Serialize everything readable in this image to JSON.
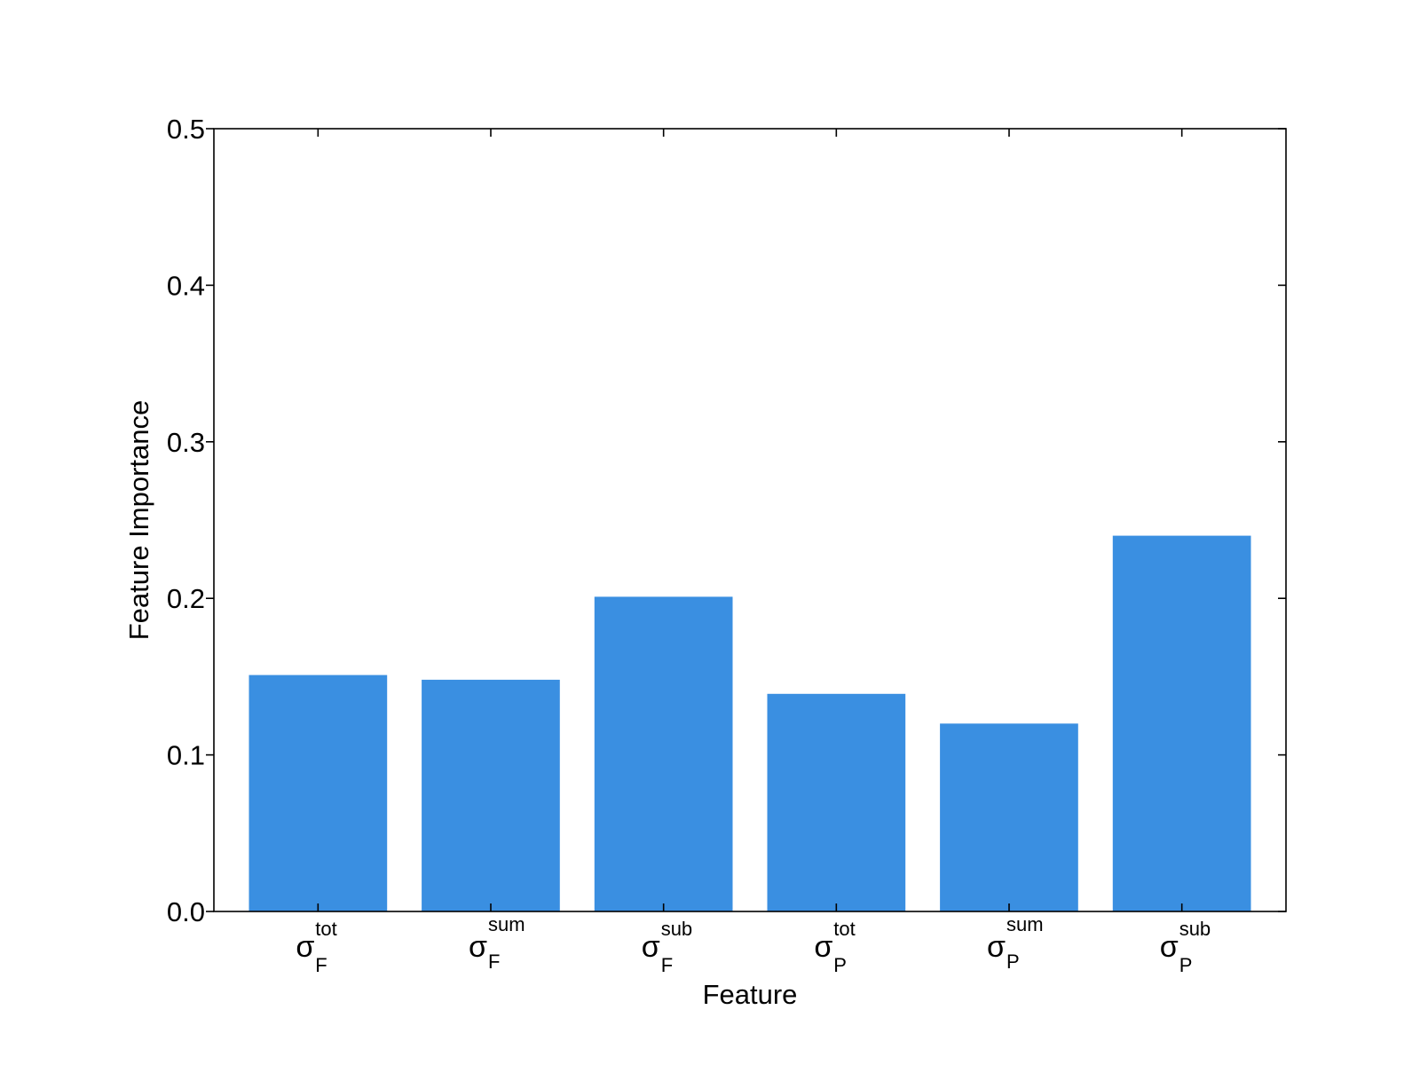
{
  "chart_data": {
    "type": "bar",
    "xlabel": "Feature",
    "ylabel": "Feature Importance",
    "ylim": [
      0,
      0.5
    ],
    "yticks": [
      "0.0",
      "0.1",
      "0.2",
      "0.3",
      "0.4",
      "0.5"
    ],
    "categories": [
      {
        "symbol": "σ",
        "sup": "tot",
        "sub": "F"
      },
      {
        "symbol": "σ",
        "sup": "sum",
        "sub": "F"
      },
      {
        "symbol": "σ",
        "sup": "sub",
        "sub": "F"
      },
      {
        "symbol": "σ",
        "sup": "tot",
        "sub": "P"
      },
      {
        "symbol": "σ",
        "sup": "sum",
        "sub": "P"
      },
      {
        "symbol": "σ",
        "sup": "sub",
        "sub": "P"
      }
    ],
    "values": [
      0.151,
      0.148,
      0.201,
      0.139,
      0.12,
      0.24
    ],
    "bar_color": "#3a8fe1",
    "grid": false,
    "legend": "none"
  }
}
